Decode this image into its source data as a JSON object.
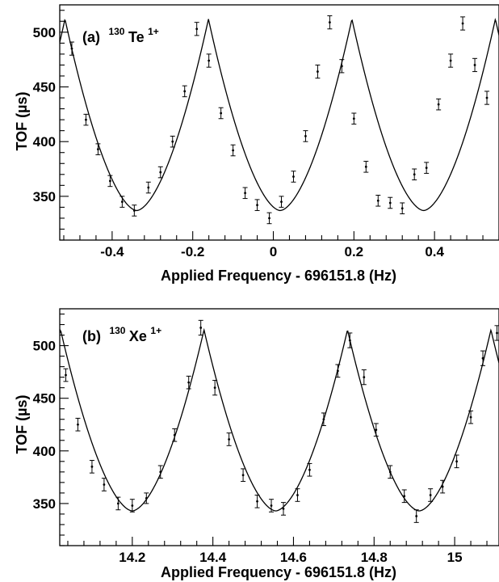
{
  "chart_data": [
    {
      "type": "scatter",
      "panel_label": "(a)",
      "ion_mass": "130",
      "ion_element": "Te",
      "ion_charge": "1+",
      "xlabel": "Applied Frequency - 696151.8 (Hz)",
      "ylabel": "TOF (µs)",
      "xlim": [
        -0.53,
        0.56
      ],
      "ylim": [
        310,
        525
      ],
      "xticks": [
        -0.4,
        -0.2,
        0,
        0.2,
        0.4
      ],
      "xtick_labels": [
        "-0.4",
        "-0.2",
        "0",
        "0.2",
        "0.4"
      ],
      "yticks": [
        350,
        400,
        450,
        500
      ],
      "ytick_labels": [
        "350",
        "400",
        "450",
        "500"
      ],
      "grid": false,
      "series": [
        {
          "x": [
            -0.5,
            -0.465,
            -0.435,
            -0.405,
            -0.375,
            -0.345,
            -0.31,
            -0.28,
            -0.25,
            -0.22,
            -0.19,
            -0.16,
            -0.13,
            -0.1,
            -0.07,
            -0.04,
            -0.01,
            0.02,
            0.05,
            0.08,
            0.11,
            0.14,
            0.17,
            0.2,
            0.23,
            0.26,
            0.29,
            0.32,
            0.35,
            0.38,
            0.41,
            0.44,
            0.47,
            0.5,
            0.53
          ],
          "y": [
            485,
            420,
            393,
            364,
            345,
            337,
            358,
            372,
            400,
            446,
            503,
            474,
            426,
            392,
            353,
            342,
            330,
            345,
            368,
            405,
            464,
            509,
            469,
            421,
            377,
            346,
            344,
            339,
            370,
            376,
            434,
            474,
            508,
            470,
            440
          ],
          "err": [
            6,
            5,
            5,
            5,
            5,
            5,
            5,
            5,
            5,
            5,
            6,
            6,
            5,
            5,
            5,
            5,
            5,
            5,
            5,
            5,
            6,
            6,
            6,
            5,
            5,
            5,
            5,
            5,
            5,
            5,
            5,
            6,
            6,
            6,
            6
          ]
        }
      ],
      "fit": {
        "period": 0.356,
        "centers": [
          -0.339,
          0.017,
          0.373
        ],
        "min": 337,
        "max": 512,
        "shape_exponent": 1.7
      }
    },
    {
      "type": "scatter",
      "panel_label": "(b)",
      "ion_mass": "130",
      "ion_element": "Xe",
      "ion_charge": "1+",
      "xlabel": "Applied Frequency - 696151.8 (Hz)",
      "ylabel": "TOF (µs)",
      "xlim": [
        14.02,
        15.11
      ],
      "ylim": [
        310,
        535
      ],
      "xticks": [
        14.2,
        14.4,
        14.6,
        14.8,
        15
      ],
      "xtick_labels": [
        "14.2",
        "14.4",
        "14.6",
        "14.8",
        "15"
      ],
      "yticks": [
        350,
        400,
        450,
        500
      ],
      "ytick_labels": [
        "350",
        "400",
        "450",
        "500"
      ],
      "grid": false,
      "series": [
        {
          "x": [
            14.035,
            14.065,
            14.1,
            14.13,
            14.165,
            14.2,
            14.235,
            14.27,
            14.305,
            14.34,
            14.37,
            14.405,
            14.44,
            14.475,
            14.51,
            14.545,
            14.575,
            14.61,
            14.64,
            14.675,
            14.71,
            14.74,
            14.775,
            14.805,
            14.84,
            14.875,
            14.905,
            14.94,
            14.97,
            15.005,
            15.04,
            15.07,
            15.105
          ],
          "y": [
            472,
            425,
            385,
            368,
            350,
            348,
            355,
            380,
            415,
            465,
            517,
            460,
            411,
            377,
            352,
            348,
            345,
            358,
            382,
            430,
            476,
            505,
            470,
            420,
            380,
            357,
            338,
            358,
            366,
            390,
            432,
            488,
            512
          ],
          "err": [
            6,
            6,
            6,
            6,
            6,
            6,
            5,
            6,
            6,
            6,
            7,
            7,
            6,
            6,
            6,
            6,
            6,
            6,
            6,
            6,
            6,
            7,
            7,
            6,
            6,
            6,
            6,
            6,
            6,
            6,
            6,
            7,
            7
          ]
        }
      ],
      "fit": {
        "period": 0.356,
        "centers": [
          14.2,
          14.556,
          14.912
        ],
        "min": 343,
        "max": 515,
        "shape_exponent": 1.7
      }
    }
  ]
}
